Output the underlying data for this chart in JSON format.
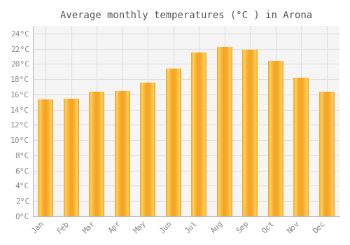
{
  "title": "Average monthly temperatures (°C ) in Arona",
  "months": [
    "Jan",
    "Feb",
    "Mar",
    "Apr",
    "May",
    "Jun",
    "Jul",
    "Aug",
    "Sep",
    "Oct",
    "Nov",
    "Dec"
  ],
  "values": [
    15.3,
    15.4,
    16.3,
    16.4,
    17.5,
    19.4,
    21.5,
    22.2,
    21.9,
    20.4,
    18.2,
    16.3
  ],
  "bar_color": "#FFA726",
  "bar_edge_color": "#FB8C00",
  "ylim": [
    0,
    25
  ],
  "yticks": [
    0,
    2,
    4,
    6,
    8,
    10,
    12,
    14,
    16,
    18,
    20,
    22,
    24
  ],
  "background_color": "#FFFFFF",
  "plot_bg_color": "#F5F5F5",
  "grid_color": "#E0E0E0",
  "title_fontsize": 10,
  "tick_fontsize": 8,
  "font_family": "monospace",
  "title_color": "#555555",
  "tick_color": "#888888",
  "bar_width": 0.6
}
